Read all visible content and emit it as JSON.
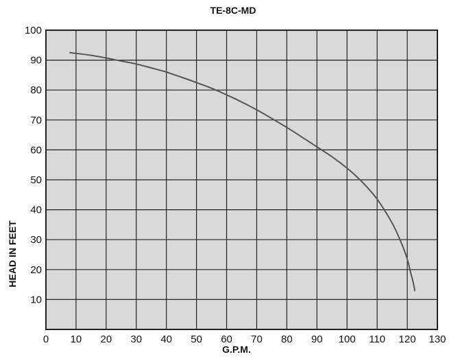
{
  "chart_data": {
    "type": "line",
    "title": "TE-8C-MD",
    "xlabel": "G.P.M.",
    "ylabel": "HEAD IN FEET",
    "xlim": [
      0,
      130
    ],
    "ylim": [
      0,
      100
    ],
    "x_ticks": [
      "0",
      "10",
      "20",
      "30",
      "40",
      "50",
      "60",
      "70",
      "80",
      "90",
      "100",
      "110",
      "120",
      "130"
    ],
    "y_ticks": [
      "10",
      "20",
      "30",
      "40",
      "50",
      "60",
      "70",
      "80",
      "90",
      "100"
    ],
    "grid": true,
    "colors": {
      "plot_background": "#d9d9d9",
      "grid": "#222222",
      "curve": "#555555"
    },
    "series": [
      {
        "x": [
          8,
          15,
          20,
          25,
          30,
          35,
          40,
          45,
          50,
          55,
          60,
          65,
          70,
          75,
          80,
          85,
          90,
          95,
          100,
          105,
          110,
          115,
          118,
          120,
          121,
          122,
          122.5
        ],
        "y": [
          92.5,
          91.6,
          90.7,
          89.7,
          88.7,
          87.4,
          86.0,
          84.3,
          82.5,
          80.6,
          78.4,
          76.0,
          73.4,
          70.5,
          67.5,
          64.3,
          61.0,
          57.7,
          53.9,
          49.3,
          43.5,
          35.5,
          29.0,
          23.5,
          19.5,
          15.5,
          13.0
        ]
      }
    ]
  }
}
